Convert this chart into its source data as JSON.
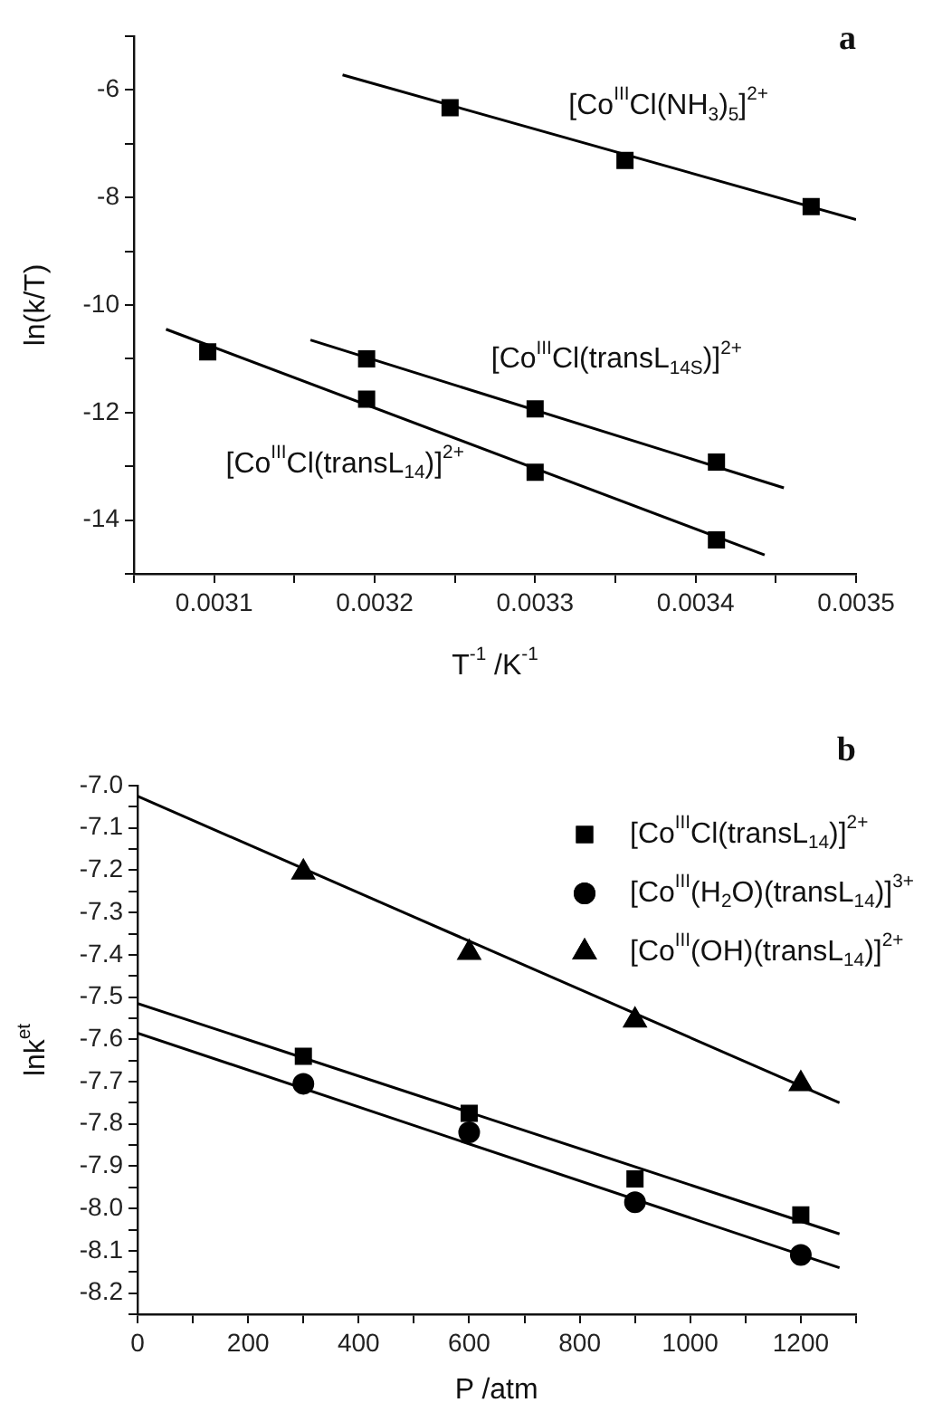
{
  "chart_data": [
    {
      "type": "scatter",
      "title": "a",
      "xlabel": "T$^{-1}$ /K$^{-1}$",
      "ylabel": "ln(k/T)",
      "legend": false,
      "xlim": [
        0.00305,
        0.0035
      ],
      "xticks": [
        {
          "value": 0.00305,
          "label": null
        },
        0.0031,
        {
          "value": 0.00315,
          "label": null
        },
        0.0032,
        {
          "value": 0.00325,
          "label": null
        },
        0.0033,
        {
          "value": 0.00335,
          "label": null
        },
        0.0034,
        {
          "value": 0.00345,
          "label": null
        },
        0.0035
      ],
      "ylim": [
        -15,
        -5
      ],
      "yticks": [
        {
          "value": -15,
          "label": null
        },
        -14,
        {
          "value": -13,
          "label": null
        },
        -12,
        {
          "value": -11,
          "label": null
        },
        -10,
        {
          "value": -9,
          "label": null
        },
        -8,
        {
          "value": -7,
          "label": null
        },
        -6,
        {
          "value": -5,
          "label": null
        }
      ],
      "series": [
        {
          "name": "[Co$^{III}$Cl(NH$_{3}$)$_{5}$]$^{2+}$",
          "color": "#000000",
          "marker": "square",
          "x": [
            0.003247,
            0.003356,
            0.003472
          ],
          "values": [
            -6.33,
            -7.31,
            -8.17
          ]
        },
        {
          "name": "[Co$^{III}$Cl(transL$_{14S}$)]$^{2+}$",
          "color": "#000000",
          "marker": "square",
          "x": [
            0.003195,
            0.0033,
            0.003413
          ],
          "values": [
            -11.0,
            -11.93,
            -12.92
          ]
        },
        {
          "name": "[Co$^{III}$Cl(transL$_{14}$)]$^{2+}$",
          "color": "#000000",
          "marker": "square",
          "x": [
            0.003096,
            0.003195,
            0.0033,
            0.003413
          ],
          "values": [
            -10.87,
            -11.75,
            -13.11,
            -14.37
          ]
        },
        {
          "type": "line",
          "color": "#000000",
          "marker": "none",
          "x": [
            0.00318,
            0.0035
          ],
          "values": [
            -5.72,
            -8.41
          ]
        },
        {
          "type": "line",
          "color": "#000000",
          "marker": "none",
          "x": [
            0.00316,
            0.003455
          ],
          "values": [
            -10.65,
            -13.4
          ]
        },
        {
          "type": "line",
          "color": "#000000",
          "marker": "none",
          "x": [
            0.00307,
            0.003443
          ],
          "values": [
            -10.45,
            -14.65
          ]
        }
      ]
    },
    {
      "type": "scatter",
      "title": "b",
      "xlabel": "P /atm",
      "ylabel": "lnk$^{et}$",
      "legend": "top right",
      "xlim": [
        0,
        1300
      ],
      "xticks": [
        0,
        {
          "value": 100,
          "label": null
        },
        200,
        {
          "value": 300,
          "label": null
        },
        400,
        {
          "value": 500,
          "label": null
        },
        600,
        {
          "value": 700,
          "label": null
        },
        800,
        {
          "value": 900,
          "label": null
        },
        1000,
        {
          "value": 1100,
          "label": null
        },
        1200,
        {
          "value": 1300,
          "label": null
        }
      ],
      "ylim": [
        -8.25,
        -7.0
      ],
      "yticks": [
        {
          "value": -8.25,
          "label": null
        },
        -8.2,
        {
          "value": -8.15,
          "label": null
        },
        -8.1,
        {
          "value": -8.05,
          "label": null
        },
        {
          "value": -8.0,
          "label": "-8.0"
        },
        {
          "value": -7.95,
          "label": null
        },
        -7.9,
        {
          "value": -7.85,
          "label": null
        },
        -7.8,
        {
          "value": -7.75,
          "label": null
        },
        -7.7,
        {
          "value": -7.65,
          "label": null
        },
        -7.6,
        {
          "value": -7.55,
          "label": null
        },
        -7.5,
        {
          "value": -7.45,
          "label": null
        },
        -7.4,
        {
          "value": -7.35,
          "label": null
        },
        -7.3,
        {
          "value": -7.25,
          "label": null
        },
        -7.2,
        {
          "value": -7.15,
          "label": null
        },
        -7.1,
        {
          "value": -7.05,
          "label": null
        },
        {
          "value": -7.0,
          "label": "-7.0"
        }
      ],
      "series": [
        {
          "name": "[Co$^{III}$Cl(transL$_{14}$)]$^{2+}$",
          "color": "#000000",
          "marker": "square",
          "x": [
            300,
            600,
            900,
            1200
          ],
          "values": [
            -7.64,
            -7.775,
            -7.93,
            -8.015
          ]
        },
        {
          "name": "[Co$^{III}$(H$_{2}$O)(transL$_{14}$)]$^{3+}$",
          "color": "#000000",
          "marker": "circle",
          "x": [
            300,
            600,
            900,
            1200
          ],
          "values": [
            -7.705,
            -7.82,
            -7.985,
            -8.11
          ]
        },
        {
          "name": "[Co$^{III}$(OH)(transL$_{14}$)]$^{2+}$",
          "color": "#000000",
          "marker": "triangle",
          "x": [
            300,
            600,
            900,
            1200
          ],
          "values": [
            -7.205,
            -7.395,
            -7.555,
            -7.705
          ]
        },
        {
          "type": "line",
          "color": "#000000",
          "marker": "none",
          "x": [
            0,
            1270
          ],
          "values": [
            -7.515,
            -8.06
          ]
        },
        {
          "type": "line",
          "color": "#000000",
          "marker": "none",
          "x": [
            0,
            1270
          ],
          "values": [
            -7.585,
            -8.14
          ]
        },
        {
          "type": "line",
          "color": "#000000",
          "marker": "none",
          "x": [
            0,
            1270
          ],
          "values": [
            -7.025,
            -7.75
          ]
        }
      ]
    }
  ]
}
